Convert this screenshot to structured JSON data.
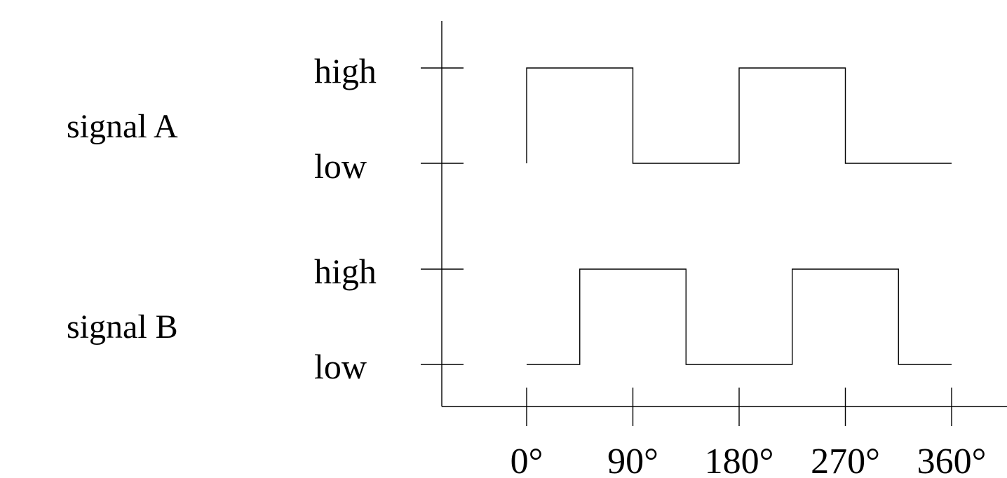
{
  "signals": [
    {
      "name": "signal A",
      "high_label": "high",
      "low_label": "low",
      "transitions": [
        {
          "deg": 0,
          "level": "high"
        },
        {
          "deg": 90,
          "level": "low"
        },
        {
          "deg": 180,
          "level": "high"
        },
        {
          "deg": 270,
          "level": "low"
        }
      ],
      "start_level": "low",
      "end_deg": 360
    },
    {
      "name": "signal B",
      "high_label": "high",
      "low_label": "low",
      "transitions": [
        {
          "deg": 45,
          "level": "high"
        },
        {
          "deg": 135,
          "level": "low"
        },
        {
          "deg": 225,
          "level": "high"
        },
        {
          "deg": 315,
          "level": "low"
        }
      ],
      "start_level": "low",
      "end_deg": 360
    }
  ],
  "x_ticks": [
    "0°",
    "90°",
    "180°",
    "270°",
    "360°"
  ],
  "x_tick_values": [
    0,
    90,
    180,
    270,
    360
  ],
  "colors": {
    "line": "#000000",
    "background": "#ffffff"
  }
}
